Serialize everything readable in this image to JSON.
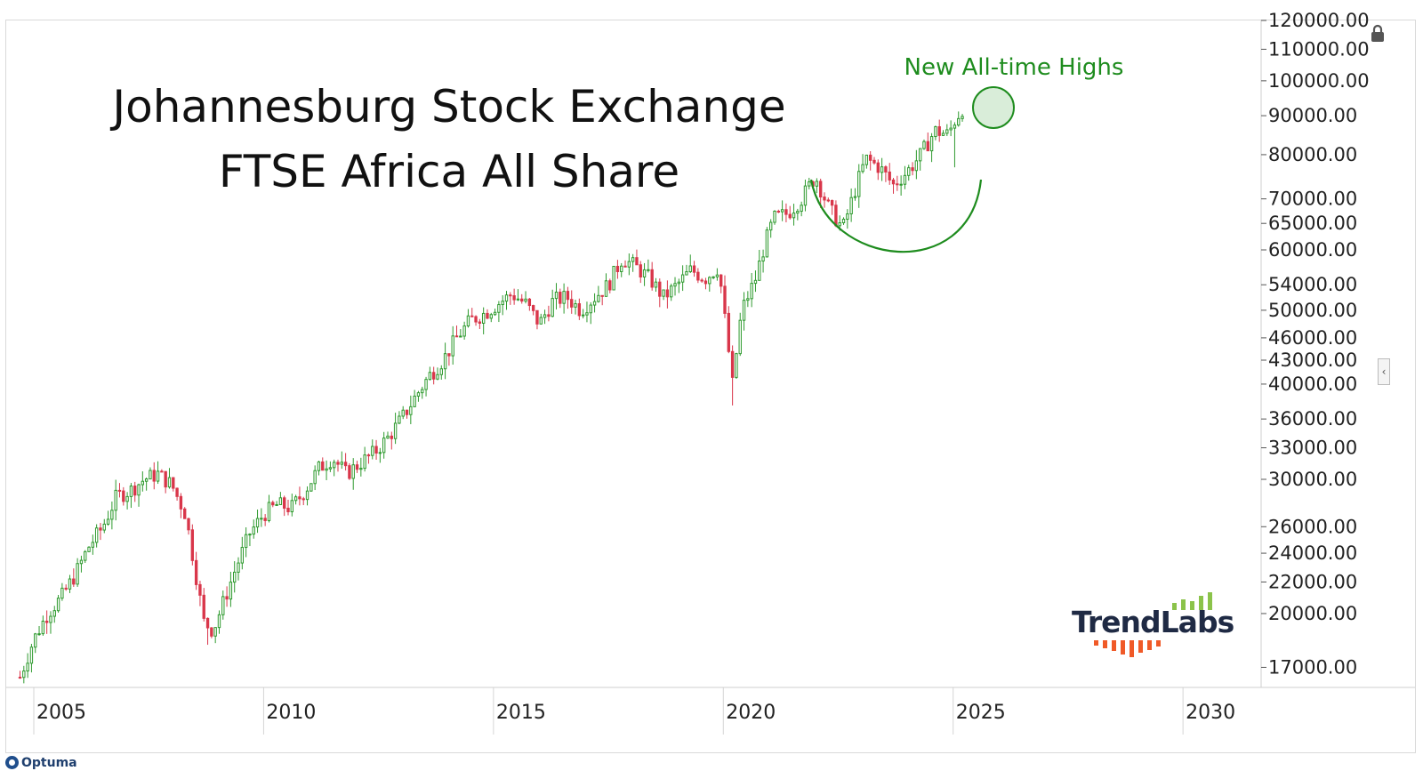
{
  "chart_data": {
    "type": "candlestick",
    "title_lines": [
      "Johannesburg Stock Exchange",
      "FTSE Africa All Share"
    ],
    "annotation": "New All-time Highs",
    "y_scale": "log",
    "y_ticks": [
      "120000.00",
      "110000.00",
      "100000.00",
      "90000.00",
      "80000.00",
      "70000.00",
      "65000.00",
      "60000.00",
      "54000.00",
      "50000.00",
      "46000.00",
      "43000.00",
      "40000.00",
      "36000.00",
      "33000.00",
      "30000.00",
      "26000.00",
      "24000.00",
      "22000.00",
      "20000.00",
      "17000.00"
    ],
    "y_range": [
      16000,
      120000
    ],
    "x_ticks": [
      "2005",
      "2010",
      "2015",
      "2020",
      "2025",
      "2030"
    ],
    "x_range": [
      2004.4,
      2031.7
    ],
    "up_color": "#2e9a2e",
    "down_color": "#d9364a",
    "annotation_color": "#1e8c1e",
    "close_series": [
      [
        2004.7,
        16500
      ],
      [
        2005.0,
        18500
      ],
      [
        2005.3,
        20000
      ],
      [
        2005.6,
        21000
      ],
      [
        2005.9,
        22500
      ],
      [
        2006.2,
        24500
      ],
      [
        2006.5,
        26000
      ],
      [
        2006.8,
        28500
      ],
      [
        2007.1,
        29000
      ],
      [
        2007.4,
        30000
      ],
      [
        2007.7,
        30500
      ],
      [
        2008.0,
        29500
      ],
      [
        2008.3,
        27000
      ],
      [
        2008.5,
        23000
      ],
      [
        2008.7,
        19500
      ],
      [
        2008.9,
        19000
      ],
      [
        2009.1,
        20500
      ],
      [
        2009.4,
        23000
      ],
      [
        2009.7,
        25500
      ],
      [
        2010.0,
        27000
      ],
      [
        2010.3,
        27800
      ],
      [
        2010.6,
        27500
      ],
      [
        2010.9,
        29000
      ],
      [
        2011.2,
        31000
      ],
      [
        2011.5,
        32000
      ],
      [
        2011.8,
        30500
      ],
      [
        2012.1,
        31500
      ],
      [
        2012.4,
        32500
      ],
      [
        2012.7,
        34000
      ],
      [
        2013.0,
        36000
      ],
      [
        2013.3,
        38500
      ],
      [
        2013.6,
        41000
      ],
      [
        2013.9,
        43000
      ],
      [
        2014.2,
        46000
      ],
      [
        2014.5,
        48500
      ],
      [
        2014.8,
        49500
      ],
      [
        2015.1,
        51000
      ],
      [
        2015.4,
        52500
      ],
      [
        2015.7,
        51000
      ],
      [
        2016.0,
        48000
      ],
      [
        2016.3,
        51500
      ],
      [
        2016.6,
        52000
      ],
      [
        2016.9,
        50000
      ],
      [
        2017.2,
        52000
      ],
      [
        2017.5,
        54000
      ],
      [
        2017.8,
        58500
      ],
      [
        2018.1,
        57000
      ],
      [
        2018.4,
        55000
      ],
      [
        2018.7,
        52000
      ],
      [
        2019.0,
        54000
      ],
      [
        2019.3,
        56500
      ],
      [
        2019.6,
        55000
      ],
      [
        2019.9,
        57000
      ],
      [
        2020.2,
        40000
      ],
      [
        2020.4,
        50000
      ],
      [
        2020.7,
        55000
      ],
      [
        2020.9,
        61000
      ],
      [
        2021.1,
        66000
      ],
      [
        2021.4,
        67000
      ],
      [
        2021.7,
        70000
      ],
      [
        2022.0,
        75000
      ],
      [
        2022.3,
        68000
      ],
      [
        2022.6,
        64000
      ],
      [
        2022.9,
        73000
      ],
      [
        2023.1,
        79000
      ],
      [
        2023.4,
        77000
      ],
      [
        2023.7,
        73000
      ],
      [
        2024.0,
        76000
      ],
      [
        2024.3,
        80000
      ],
      [
        2024.6,
        86000
      ],
      [
        2024.9,
        85000
      ],
      [
        2025.0,
        88000
      ],
      [
        2025.2,
        92000
      ]
    ]
  },
  "branding": {
    "logo_word": "TrendLabs",
    "footer_logo": "Optuma"
  },
  "icons": {
    "lock": "lock-icon",
    "collapse": "chevron-left-icon"
  }
}
